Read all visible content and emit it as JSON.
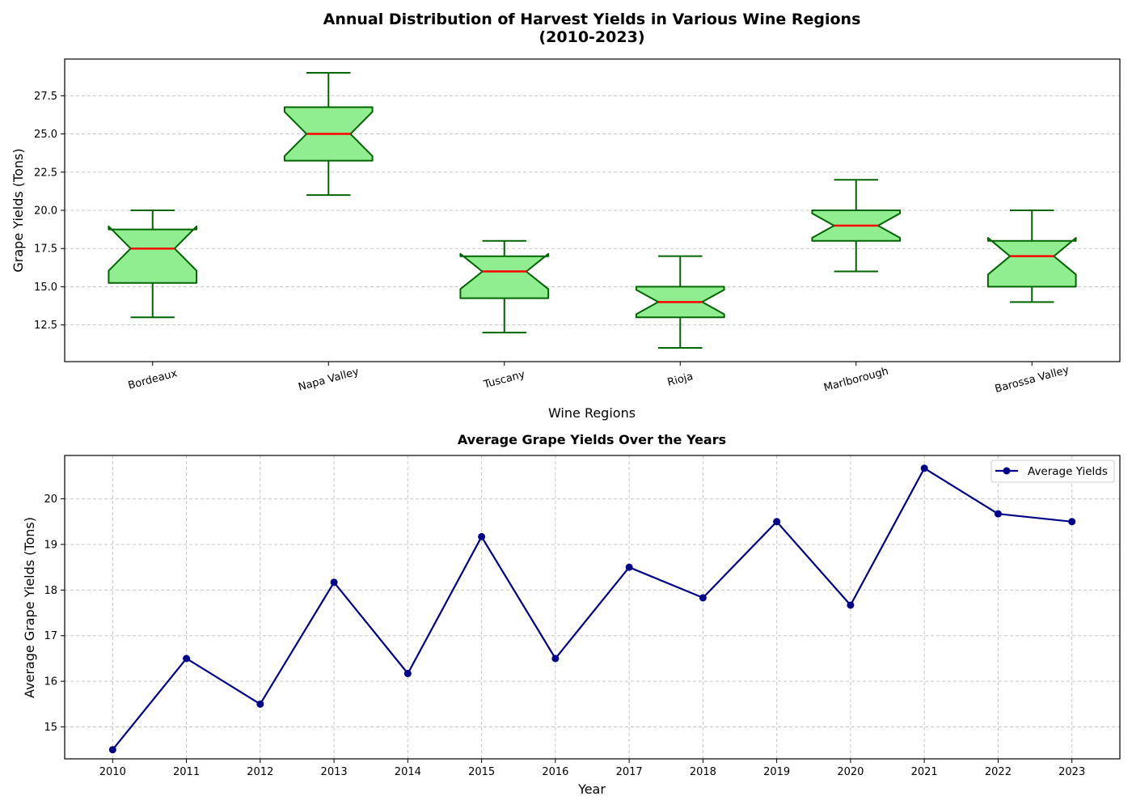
{
  "figure": {
    "title_line1": "Annual Distribution of Harvest Yields in Various Wine Regions",
    "title_line2": "(2010-2023)"
  },
  "chart_data": [
    {
      "type": "box",
      "notched": true,
      "xlabel": "Wine Regions",
      "ylabel": "Grape Yields (Tons)",
      "ylim": [
        10.1,
        29.9
      ],
      "yticks": [
        12.5,
        15.0,
        17.5,
        20.0,
        22.5,
        25.0,
        27.5
      ],
      "grid": true,
      "colors": {
        "box_fill": "#90EE90",
        "box_edge": "#006400",
        "median": "#ff0000",
        "whisker": "#006400"
      },
      "categories": [
        "Bordeaux",
        "Napa Valley",
        "Tuscany",
        "Rioja",
        "Marlborough",
        "Barossa Valley"
      ],
      "boxes": [
        {
          "label": "Bordeaux",
          "whislo": 13,
          "q1": 15.25,
          "med": 17.5,
          "q3": 18.75,
          "whishi": 20,
          "notch_lo": 16.05,
          "notch_hi": 18.95
        },
        {
          "label": "Napa Valley",
          "whislo": 21,
          "q1": 23.25,
          "med": 25,
          "q3": 26.75,
          "whishi": 29,
          "notch_lo": 23.55,
          "notch_hi": 26.45
        },
        {
          "label": "Tuscany",
          "whislo": 12,
          "q1": 14.25,
          "med": 16,
          "q3": 17,
          "whishi": 18,
          "notch_lo": 14.85,
          "notch_hi": 17.15
        },
        {
          "label": "Rioja",
          "whislo": 11,
          "q1": 13,
          "med": 14,
          "q3": 15,
          "whishi": 17,
          "notch_lo": 13.2,
          "notch_hi": 14.8
        },
        {
          "label": "Marlborough",
          "whislo": 16,
          "q1": 18,
          "med": 19,
          "q3": 20,
          "whishi": 22,
          "notch_lo": 18.2,
          "notch_hi": 19.8
        },
        {
          "label": "Barossa Valley",
          "whislo": 14,
          "q1": 15,
          "med": 17,
          "q3": 18,
          "whishi": 20,
          "notch_lo": 15.8,
          "notch_hi": 18.2
        }
      ]
    },
    {
      "type": "line",
      "title": "Average Grape Yields Over the Years",
      "xlabel": "Year",
      "ylabel": "Average Grape Yields (Tons)",
      "ylim": [
        14.3,
        20.95
      ],
      "yticks": [
        15,
        16,
        17,
        18,
        19,
        20
      ],
      "grid": true,
      "legend_position": "top-right",
      "x": [
        2010,
        2011,
        2012,
        2013,
        2014,
        2015,
        2016,
        2017,
        2018,
        2019,
        2020,
        2021,
        2022,
        2023
      ],
      "series": [
        {
          "name": "Average Yields",
          "color": "#00008B",
          "marker": "circle",
          "values": [
            14.5,
            16.5,
            15.5,
            18.17,
            16.17,
            19.17,
            16.5,
            18.5,
            17.83,
            19.5,
            17.67,
            20.67,
            19.67,
            19.5
          ]
        }
      ]
    }
  ]
}
